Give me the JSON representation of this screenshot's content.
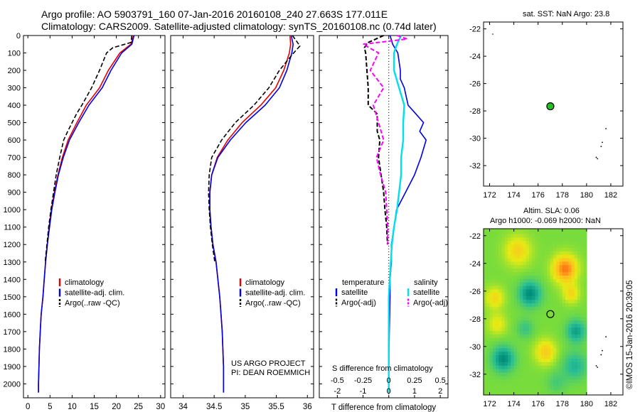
{
  "header": {
    "title_line1": "Argo profile: AO 5903791_160 07-Jan-2016 20160108_240 27.663S 177.011E",
    "title_line2": "Climatology: CARS2009. Satellite-adjusted climatology: synTS_20160108.nc (0.74d later)"
  },
  "panels": {
    "sst_caption": "sat. SST: NaN Argo: 23.8",
    "sla_caption1": "Altim. SLA: 0.06",
    "sla_caption2": "Argo h1000: -0.069 h2000: NaN",
    "credit": "US ARGO PROJECT",
    "pi": "PI: DEAN ROEMMICH",
    "timestamp": "©IMOS 15-Jan-2016 20:39:05"
  },
  "colors": {
    "climatology": "#e60000",
    "satellite": "#0000e6",
    "argo": "#000000",
    "sal_satellite": "#00e0e6",
    "sal_argo": "#ff00ff",
    "argo_point": "#22c022"
  },
  "chart_data": [
    {
      "type": "line",
      "xlabel": "temperature (deg C)",
      "ylabel": "",
      "xlim": [
        -1,
        31
      ],
      "ylim": [
        2080,
        0
      ],
      "xticks": [
        "0",
        "5",
        "10",
        "15",
        "20",
        "25",
        "30"
      ],
      "yticks": [
        "0",
        "100",
        "200",
        "300",
        "400",
        "500",
        "600",
        "700",
        "800",
        "900",
        "1000",
        "1100",
        "1200",
        "1300",
        "1400",
        "1500",
        "1600",
        "1700",
        "1800",
        "1900",
        "2000"
      ],
      "legend": [
        "climatology",
        "satellite-adj. clim.",
        "Argo(..raw -QC)"
      ],
      "series": [
        {
          "name": "climatology",
          "x": [
            23.9,
            23.3,
            20.8,
            18.2,
            16.2,
            13.2,
            11.1,
            9.1,
            7.8,
            6.8,
            6.0,
            5.3,
            4.8,
            4.4,
            4.0,
            3.7,
            3.4,
            3.0,
            2.8,
            2.6,
            2.5,
            2.4,
            2.4
          ],
          "y": [
            0,
            50,
            100,
            200,
            300,
            400,
            500,
            600,
            700,
            800,
            900,
            1000,
            1100,
            1200,
            1300,
            1400,
            1500,
            1600,
            1700,
            1800,
            1900,
            2000,
            2050
          ]
        },
        {
          "name": "satellite-adj. clim.",
          "x": [
            24.0,
            23.5,
            21.2,
            18.8,
            16.8,
            13.8,
            11.5,
            9.4,
            8.0,
            6.9,
            6.1,
            5.4,
            4.9,
            4.4,
            4.0,
            3.7,
            3.4,
            3.0,
            2.8,
            2.6,
            2.5,
            2.4,
            2.4
          ],
          "y": [
            0,
            50,
            100,
            200,
            300,
            400,
            500,
            600,
            700,
            800,
            900,
            1000,
            1100,
            1200,
            1300,
            1400,
            1500,
            1600,
            1700,
            1800,
            1900,
            2000,
            2050
          ]
        },
        {
          "name": "Argo(..raw -QC)",
          "x": [
            23.5,
            23.3,
            19.2,
            17.8,
            16.2,
            14.4,
            12.2,
            11.0,
            9.0,
            8.1,
            7.2,
            6.4,
            5.8,
            5.2,
            4.7,
            4.3,
            3.9
          ],
          "y": [
            0,
            40,
            70,
            100,
            200,
            300,
            400,
            450,
            550,
            600,
            700,
            800,
            900,
            1000,
            1100,
            1200,
            1300
          ]
        }
      ]
    },
    {
      "type": "line",
      "xlabel": "salinity",
      "ylabel": "",
      "xlim": [
        33.8,
        36.1
      ],
      "ylim": [
        2080,
        0
      ],
      "xticks": [
        "34",
        "34.5",
        "35",
        "35.5",
        "36"
      ],
      "legend": [
        "climatology",
        "satellite-adj. clim.",
        "Argo(..raw -QC)"
      ],
      "series": [
        {
          "name": "climatology",
          "x": [
            35.72,
            35.73,
            35.71,
            35.62,
            35.49,
            35.25,
            34.95,
            34.72,
            34.55,
            34.46,
            34.43,
            34.43,
            34.45,
            34.48,
            34.53,
            34.56,
            34.59,
            34.61,
            34.63,
            34.64,
            34.65,
            34.65,
            34.65
          ],
          "y": [
            0,
            50,
            100,
            200,
            300,
            400,
            500,
            600,
            700,
            800,
            900,
            1000,
            1100,
            1200,
            1300,
            1400,
            1500,
            1600,
            1700,
            1800,
            1900,
            2000,
            2050
          ]
        },
        {
          "name": "satellite-adj. clim.",
          "x": [
            35.74,
            35.77,
            35.75,
            35.67,
            35.55,
            35.32,
            35.01,
            34.76,
            34.56,
            34.46,
            34.43,
            34.43,
            34.45,
            34.48,
            34.53,
            34.56,
            34.59,
            34.61,
            34.63,
            34.64,
            34.65,
            34.65,
            34.65
          ],
          "y": [
            0,
            50,
            100,
            200,
            300,
            400,
            500,
            600,
            700,
            800,
            900,
            1000,
            1100,
            1200,
            1300,
            1400,
            1500,
            1600,
            1700,
            1800,
            1900,
            2000,
            2050
          ]
        },
        {
          "name": "Argo(..raw -QC)",
          "x": [
            35.76,
            35.88,
            35.78,
            35.55,
            35.38,
            35.14,
            34.84,
            34.62,
            34.46,
            34.42,
            34.41,
            34.42,
            34.44,
            34.47,
            34.51
          ],
          "y": [
            0,
            60,
            100,
            200,
            300,
            400,
            500,
            600,
            700,
            800,
            900,
            1000,
            1100,
            1200,
            1300
          ]
        }
      ]
    },
    {
      "type": "line",
      "xlabel": "T difference from climatology",
      "xlabel_top": "S difference from climatology",
      "xlim": [
        -2.7,
        2.3
      ],
      "ylim": [
        2080,
        0
      ],
      "xticks": [
        "-2",
        "-1",
        "0",
        "1",
        "2"
      ],
      "xticks_s": [
        "-0.5",
        "-0.25",
        "0",
        "0.25",
        "0.5"
      ],
      "legend": [
        "temperature",
        "satellite",
        "Argo(-adj)",
        "salinity",
        "satellite",
        "Argo(-adj)"
      ],
      "series": [
        {
          "name": "temperature satellite",
          "x": [
            0.05,
            0.15,
            0.35,
            0.45,
            0.45,
            0.6,
            0.75,
            1.05,
            1.35,
            1.2,
            1.45,
            1.25,
            1.0,
            0.65,
            0.3,
            0.2,
            0.1,
            0.1,
            0.05,
            0.05,
            0.02,
            0.0,
            0.0
          ],
          "y": [
            0,
            50,
            100,
            200,
            250,
            300,
            400,
            450,
            500,
            550,
            600,
            700,
            800,
            900,
            1000,
            1100,
            1200,
            1300,
            1400,
            1500,
            1700,
            1900,
            2050
          ]
        },
        {
          "name": "temperature Argo(-adj)",
          "x": [
            -0.2,
            -0.8,
            -0.95,
            -0.9,
            -0.85,
            -0.8,
            -0.8,
            -0.45,
            -0.45,
            -0.45,
            -0.35,
            -0.4,
            -0.3,
            -0.2,
            -0.15,
            -0.08,
            -0.05
          ],
          "y": [
            0,
            40,
            70,
            100,
            200,
            300,
            400,
            450,
            500,
            550,
            600,
            700,
            800,
            900,
            1000,
            1100,
            1200
          ]
        },
        {
          "name": "salinity satellite",
          "x": [
            0.12,
            0.08,
            0.05,
            0.05,
            0.1,
            0.15,
            0.14,
            0.14,
            0.12,
            0.12,
            0.1,
            0.08,
            0.05,
            0.03,
            0.02,
            0.01,
            0.0,
            0.0,
            0.0,
            0.0,
            0.0,
            0.0,
            0.0
          ],
          "y": [
            0,
            50,
            100,
            200,
            300,
            400,
            500,
            600,
            700,
            800,
            900,
            1000,
            1100,
            1200,
            1300,
            1400,
            1500,
            1600,
            1700,
            1800,
            1900,
            2000,
            2050
          ]
        },
        {
          "name": "salinity Argo(-adj)",
          "x": [
            0.08,
            0.18,
            -0.25,
            -0.1,
            -0.18,
            -0.05,
            -0.15,
            -0.1,
            -0.05,
            -0.12,
            -0.08,
            -0.03,
            -0.02,
            -0.01,
            -0.01
          ],
          "y": [
            0,
            20,
            50,
            100,
            200,
            300,
            400,
            500,
            600,
            700,
            800,
            900,
            1000,
            1100,
            1200
          ]
        }
      ]
    },
    {
      "type": "scatter",
      "title": "sat. SST: NaN Argo: 23.8",
      "xlim": [
        171.5,
        183
      ],
      "ylim": [
        -33.5,
        -21.5
      ],
      "xticks": [
        "172",
        "174",
        "176",
        "178",
        "180",
        "182"
      ],
      "yticks": [
        "-22",
        "-24",
        "-26",
        "-28",
        "-30",
        "-32"
      ],
      "points": [
        {
          "x": 177.011,
          "y": -27.663
        }
      ]
    },
    {
      "type": "heatmap",
      "title": "Altim. SLA: 0.06",
      "xlim": [
        171.5,
        183
      ],
      "ylim": [
        -33.5,
        -21.5
      ],
      "xticks": [
        "172",
        "174",
        "176",
        "178",
        "180",
        "182"
      ],
      "yticks": [
        "-22",
        "-24",
        "-26",
        "-28",
        "-30",
        "-32"
      ],
      "points": [
        {
          "x": 177.011,
          "y": -27.663
        }
      ]
    }
  ]
}
